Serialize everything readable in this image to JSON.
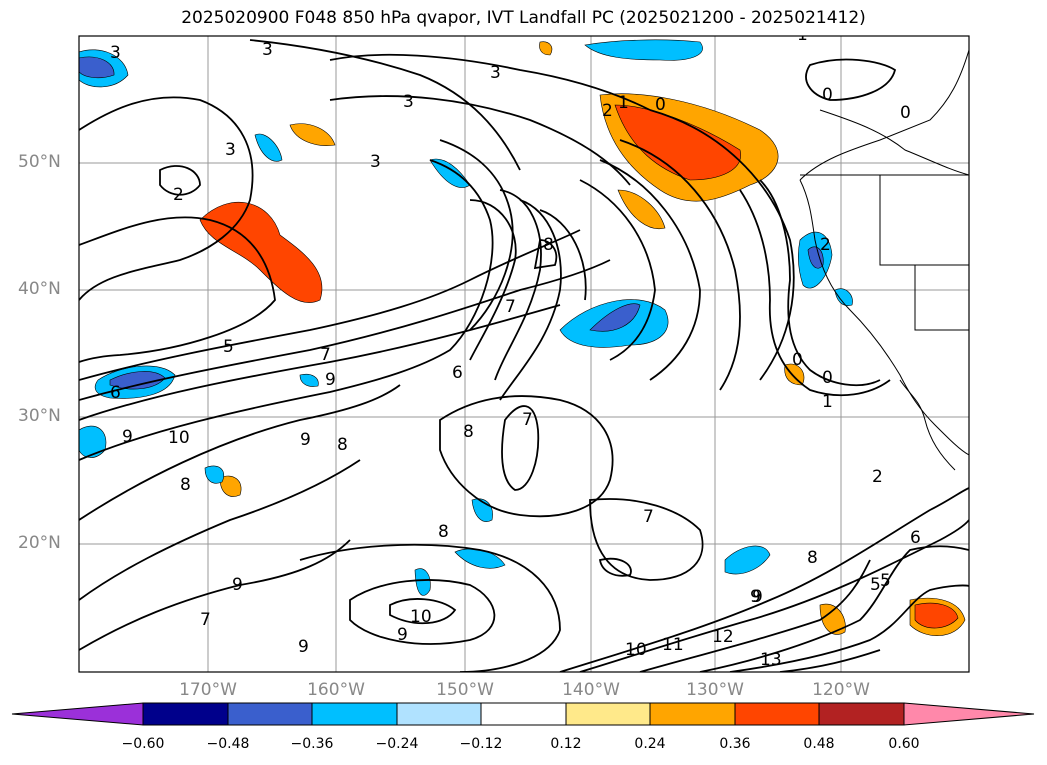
{
  "title": "2025020900 F048 850 hPa qvapor, IVT Landfall PC (2025021200 - 2025021412)",
  "lat_labels": [
    "50°N",
    "40°N",
    "30°N",
    "20°N"
  ],
  "lon_labels": [
    "170°W",
    "160°W",
    "150°W",
    "140°W",
    "130°W",
    "120°W"
  ],
  "colorbar": {
    "ticks": [
      "−0.60",
      "−0.48",
      "−0.36",
      "−0.24",
      "−0.12",
      "0.12",
      "0.24",
      "0.36",
      "0.48",
      "0.60"
    ],
    "colors": [
      "#9b30d9",
      "#00008b",
      "#3a5fcd",
      "#00bfff",
      "#b0e2ff",
      "#ffffff",
      "#ffe98a",
      "#ffa500",
      "#ff4500",
      "#b22222",
      "#ff88aa"
    ]
  },
  "contour_labels": [
    "3",
    "3",
    "3",
    "3",
    "3",
    "3",
    "2",
    "2",
    "1",
    "0",
    "0",
    "0",
    "2",
    "1",
    "0",
    "0",
    "1",
    "2",
    "5",
    "5",
    "6",
    "6",
    "7",
    "7",
    "7",
    "7",
    "7",
    "8",
    "8",
    "8",
    "8",
    "8",
    "9",
    "9",
    "9",
    "9",
    "9",
    "9",
    "10",
    "10",
    "10",
    "11",
    "12",
    "13",
    "6",
    "5",
    "9",
    "8",
    "9"
  ]
}
